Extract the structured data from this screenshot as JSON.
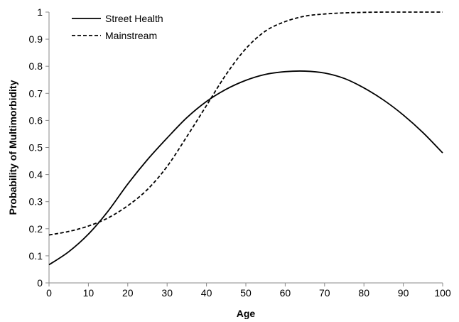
{
  "chart_data": {
    "type": "line",
    "title": "",
    "xlabel": "Age",
    "ylabel": "Probability of Multimorbidity",
    "xlim": [
      0,
      100
    ],
    "ylim": [
      0,
      1
    ],
    "x_ticks": [
      0,
      10,
      20,
      30,
      40,
      50,
      60,
      70,
      80,
      90,
      100
    ],
    "y_ticks": [
      0,
      0.1,
      0.2,
      0.3,
      0.4,
      0.5,
      0.6,
      0.7,
      0.8,
      0.9,
      1
    ],
    "x_tick_labels": [
      "0",
      "10",
      "20",
      "30",
      "40",
      "50",
      "60",
      "70",
      "80",
      "90",
      "100"
    ],
    "y_tick_labels": [
      "0",
      "0.1",
      "0.2",
      "0.3",
      "0.4",
      "0.5",
      "0.6",
      "0.7",
      "0.8",
      "0.9",
      "1"
    ],
    "grid": false,
    "legend": "top-left",
    "x": [
      0,
      5,
      10,
      15,
      20,
      25,
      30,
      35,
      40,
      45,
      50,
      55,
      60,
      65,
      70,
      75,
      80,
      85,
      90,
      95,
      100
    ],
    "series": [
      {
        "name": "Street Health",
        "style": "solid",
        "color": "#000000",
        "values": [
          0.067,
          0.115,
          0.18,
          0.265,
          0.365,
          0.455,
          0.535,
          0.61,
          0.67,
          0.715,
          0.748,
          0.77,
          0.78,
          0.782,
          0.775,
          0.755,
          0.72,
          0.675,
          0.62,
          0.555,
          0.48
        ]
      },
      {
        "name": "Mainstream",
        "style": "dashed",
        "color": "#000000",
        "values": [
          0.177,
          0.19,
          0.21,
          0.24,
          0.285,
          0.345,
          0.43,
          0.54,
          0.655,
          0.77,
          0.865,
          0.93,
          0.965,
          0.985,
          0.993,
          0.997,
          0.999,
          1.0,
          1.0,
          1.0,
          1.0
        ]
      }
    ]
  }
}
